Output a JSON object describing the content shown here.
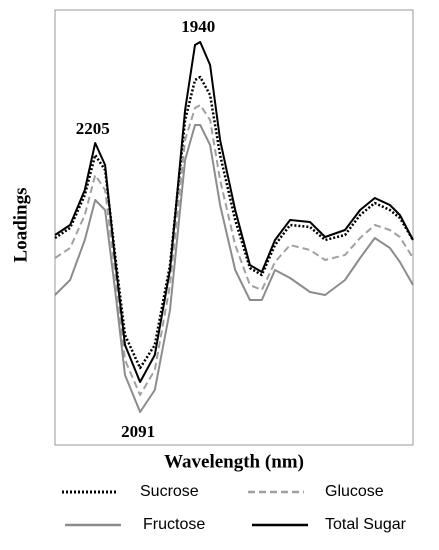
{
  "chart_data": {
    "type": "line",
    "xlabel": "Wavelength (nm)",
    "ylabel": "Loadings",
    "x": [
      2300,
      2262,
      2225,
      2199,
      2174,
      2149,
      2124,
      2086,
      2049,
      2011,
      1973,
      1948,
      1935,
      1910,
      1885,
      1847,
      1810,
      1780,
      1747,
      1709,
      1659,
      1621,
      1571,
      1533,
      1496,
      1458,
      1433,
      1400
    ],
    "xlim": [
      2300,
      1400
    ],
    "ylim": [
      0,
      435
    ],
    "series": [
      {
        "name": "Sucrose",
        "color": "#000000",
        "dash": "dotted",
        "width": 2.5,
        "values": [
          207,
          217,
          250,
          290,
          275,
          190,
          110,
          77,
          100,
          180,
          325,
          365,
          368,
          350,
          290,
          225,
          177,
          170,
          200,
          220,
          218,
          205,
          210,
          230,
          242,
          235,
          227,
          205
        ]
      },
      {
        "name": "Glucose",
        "color": "#a0a0a0",
        "dash": "dashed",
        "width": 2,
        "values": [
          187,
          197,
          230,
          270,
          255,
          173,
          85,
          50,
          75,
          160,
          305,
          337,
          340,
          325,
          265,
          200,
          160,
          155,
          183,
          200,
          195,
          185,
          190,
          207,
          220,
          215,
          208,
          187
        ]
      },
      {
        "name": "Fructose",
        "color": "#8c8c8c",
        "dash": "solid",
        "width": 2,
        "values": [
          150,
          165,
          205,
          245,
          235,
          155,
          70,
          33,
          55,
          135,
          285,
          320,
          320,
          300,
          240,
          175,
          145,
          145,
          175,
          167,
          153,
          150,
          165,
          187,
          207,
          197,
          183,
          160
        ]
      },
      {
        "name": "Total Sugar",
        "color": "#000000",
        "dash": "solid",
        "width": 2,
        "values": [
          210,
          220,
          255,
          302,
          280,
          185,
          100,
          63,
          90,
          175,
          335,
          400,
          403,
          380,
          305,
          235,
          180,
          173,
          205,
          225,
          223,
          208,
          215,
          235,
          247,
          240,
          230,
          205
        ]
      }
    ],
    "annotations": [
      2205,
      1940,
      2091
    ]
  }
}
